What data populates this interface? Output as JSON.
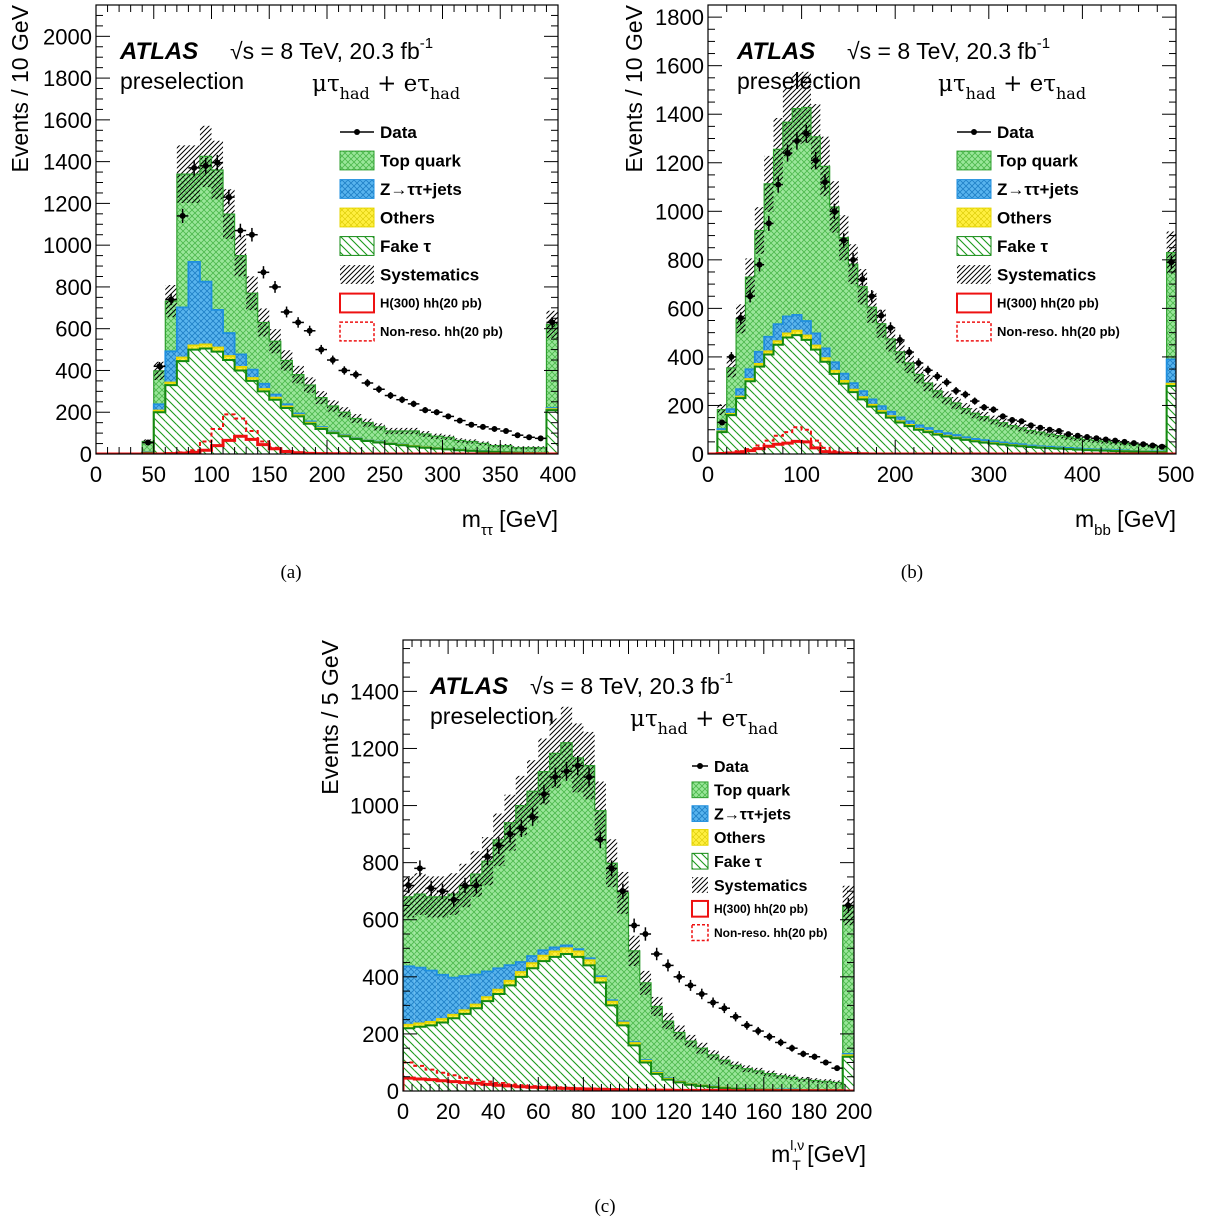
{
  "colors": {
    "top": "#99e699",
    "top_hatch": "#44b044",
    "ztt": "#2f9fe6",
    "others": "#ffee22",
    "fake": "#1c9a1c",
    "signal": "#ee1111",
    "data": "#000000"
  },
  "legend": {
    "data": "Data",
    "top": "Top quark",
    "ztt": "Z→ττ+jets",
    "others": "Others",
    "fake": "Fake  τ",
    "syst": "Systematics",
    "h300": "H(300) hh(20 pb)",
    "nonres": "Non-reso. hh(20 pb)"
  },
  "labels": {
    "atlas": "ATLAS",
    "sqrt_s": "√s = 8 TeV, 20.3 fb",
    "lumi_exp": "-1",
    "preselection": "preselection",
    "ch1": "μτ",
    "ch2": " + eτ",
    "had": "had"
  },
  "chart_data": [
    {
      "type": "histogram",
      "caption": "(a)",
      "xlabel_main": "m",
      "xlabel_sub": "ττ",
      "xlabel_sup": "",
      "xlabel_unit": " [GeV]",
      "ylabel": "Events / 10 GeV",
      "xlim": [
        0,
        400
      ],
      "ylim": [
        0,
        2150
      ],
      "xticks": [
        0,
        50,
        100,
        150,
        200,
        250,
        300,
        350,
        400
      ],
      "yticks": [
        0,
        200,
        400,
        600,
        800,
        1000,
        1200,
        1400,
        1600,
        1800,
        2000
      ],
      "bin_width": 10,
      "fake": [
        0,
        0,
        0,
        0,
        5,
        200,
        330,
        445,
        500,
        505,
        490,
        450,
        400,
        350,
        300,
        260,
        220,
        180,
        145,
        120,
        100,
        85,
        72,
        62,
        55,
        48,
        42,
        36,
        30,
        26,
        22,
        18,
        15,
        12,
        10,
        8,
        6,
        4,
        3,
        210
      ],
      "others": [
        0,
        0,
        0,
        0,
        2,
        8,
        12,
        17,
        20,
        20,
        20,
        19,
        17,
        14,
        11,
        10,
        8,
        6,
        5,
        4,
        3,
        3,
        2,
        2,
        2,
        2,
        2,
        2,
        2,
        2,
        1,
        1,
        1,
        1,
        1,
        1,
        1,
        1,
        1,
        5
      ],
      "ztt": [
        0,
        0,
        0,
        0,
        3,
        30,
        150,
        240,
        400,
        300,
        180,
        110,
        60,
        40,
        25,
        15,
        10,
        8,
        6,
        5,
        4,
        3,
        3,
        2,
        2,
        2,
        2,
        1,
        1,
        1,
        1,
        1,
        1,
        1,
        1,
        1,
        1,
        1,
        1,
        5
      ],
      "top": [
        0,
        0,
        0,
        0,
        50,
        160,
        240,
        638,
        420,
        600,
        670,
        570,
        473,
        366,
        294,
        255,
        210,
        186,
        174,
        141,
        123,
        109,
        93,
        84,
        71,
        58,
        64,
        71,
        63,
        56,
        56,
        45,
        43,
        37,
        28,
        30,
        22,
        24,
        25,
        400
      ],
      "data": [
        0,
        0,
        0,
        0,
        55,
        420,
        740,
        1140,
        1370,
        1380,
        1395,
        1230,
        1070,
        1050,
        870,
        800,
        680,
        630,
        590,
        500,
        450,
        400,
        380,
        340,
        310,
        280,
        260,
        240,
        210,
        200,
        180,
        160,
        140,
        130,
        120,
        110,
        90,
        80,
        75,
        630
      ],
      "signal_h300": [
        0,
        0,
        0,
        0,
        0,
        0,
        2,
        4,
        8,
        18,
        40,
        65,
        85,
        70,
        45,
        25,
        12,
        6,
        3,
        2,
        1,
        1,
        0,
        0,
        0,
        0,
        0,
        0,
        0,
        0,
        0,
        0,
        0,
        0,
        0,
        0,
        0,
        0,
        0,
        0
      ],
      "signal_nonres": [
        0,
        0,
        0,
        0,
        0,
        0,
        3,
        8,
        18,
        60,
        120,
        190,
        170,
        110,
        60,
        30,
        15,
        8,
        4,
        2,
        1,
        0,
        0,
        0,
        0,
        0,
        0,
        0,
        0,
        0,
        0,
        0,
        0,
        0,
        0,
        0,
        0,
        0,
        0,
        0
      ]
    },
    {
      "type": "histogram",
      "caption": "(b)",
      "xlabel_main": "m",
      "xlabel_sub": "bb",
      "xlabel_sup": "",
      "xlabel_unit": " [GeV]",
      "ylabel": "Events / 10 GeV",
      "xlim": [
        0,
        500
      ],
      "ylim": [
        0,
        1850
      ],
      "xticks": [
        0,
        100,
        200,
        300,
        400,
        500
      ],
      "yticks": [
        0,
        200,
        400,
        600,
        800,
        1000,
        1200,
        1400,
        1600,
        1800
      ],
      "bin_width": 10,
      "fake": [
        0,
        90,
        160,
        230,
        300,
        360,
        410,
        450,
        480,
        490,
        470,
        430,
        380,
        330,
        290,
        255,
        225,
        195,
        170,
        150,
        130,
        115,
        100,
        90,
        80,
        72,
        65,
        58,
        52,
        47,
        43,
        39,
        35,
        32,
        29,
        26,
        24,
        22,
        20,
        18,
        16,
        15,
        14,
        12,
        11,
        10,
        9,
        8,
        7,
        280
      ],
      "others": [
        0,
        3,
        5,
        7,
        9,
        11,
        13,
        15,
        17,
        18,
        18,
        17,
        15,
        13,
        11,
        10,
        9,
        8,
        7,
        6,
        5,
        5,
        4,
        4,
        3,
        3,
        3,
        2,
        2,
        2,
        2,
        2,
        2,
        2,
        1,
        1,
        1,
        1,
        1,
        1,
        1,
        1,
        1,
        1,
        1,
        1,
        1,
        1,
        1,
        10
      ],
      "ztt": [
        0,
        10,
        20,
        30,
        40,
        50,
        60,
        70,
        70,
        65,
        60,
        50,
        40,
        35,
        30,
        27,
        25,
        22,
        20,
        18,
        16,
        15,
        14,
        13,
        12,
        11,
        10,
        9,
        8,
        8,
        7,
        7,
        6,
        6,
        5,
        5,
        5,
        4,
        4,
        4,
        3,
        3,
        3,
        3,
        3,
        2,
        2,
        2,
        2,
        100
      ],
      "top": [
        0,
        80,
        170,
        290,
        380,
        500,
        630,
        720,
        800,
        850,
        880,
        810,
        750,
        640,
        560,
        490,
        430,
        380,
        340,
        300,
        270,
        240,
        210,
        185,
        165,
        145,
        132,
        118,
        106,
        97,
        88,
        81,
        74,
        68,
        62,
        58,
        52,
        49,
        45,
        42,
        40,
        37,
        34,
        31,
        29,
        27,
        25,
        23,
        21,
        440
      ],
      "data": [
        0,
        130,
        400,
        560,
        650,
        780,
        950,
        1110,
        1240,
        1290,
        1320,
        1210,
        1120,
        1000,
        880,
        800,
        720,
        650,
        570,
        520,
        470,
        420,
        375,
        345,
        320,
        295,
        260,
        245,
        218,
        192,
        183,
        155,
        140,
        135,
        118,
        108,
        100,
        95,
        82,
        75,
        70,
        65,
        60,
        55,
        50,
        45,
        40,
        35,
        30,
        790
      ],
      "signal_h300": [
        0,
        2,
        4,
        8,
        14,
        22,
        32,
        40,
        45,
        52,
        50,
        25,
        10,
        5,
        3,
        2,
        1,
        0,
        0,
        0,
        0,
        0,
        0,
        0,
        0,
        0,
        0,
        0,
        0,
        0,
        0,
        0,
        0,
        0,
        0,
        0,
        0,
        0,
        0,
        0,
        0,
        0,
        0,
        0,
        0,
        0,
        0,
        0,
        0,
        0
      ],
      "signal_nonres": [
        0,
        3,
        6,
        12,
        20,
        35,
        55,
        75,
        90,
        110,
        100,
        55,
        25,
        12,
        6,
        3,
        2,
        1,
        0,
        0,
        0,
        0,
        0,
        0,
        0,
        0,
        0,
        0,
        0,
        0,
        0,
        0,
        0,
        0,
        0,
        0,
        0,
        0,
        0,
        0,
        0,
        0,
        0,
        0,
        0,
        0,
        0,
        0,
        0,
        0
      ]
    },
    {
      "type": "histogram",
      "caption": "(c)",
      "xlabel_main": "m",
      "xlabel_sub": "T",
      "xlabel_sup": "l,ν",
      "xlabel_unit": " [GeV]",
      "ylabel": "Events / 5 GeV",
      "xlim": [
        0,
        200
      ],
      "ylim": [
        0,
        1580
      ],
      "xticks": [
        0,
        20,
        40,
        60,
        80,
        100,
        120,
        140,
        160,
        180,
        200
      ],
      "yticks": [
        0,
        200,
        400,
        600,
        800,
        1000,
        1200,
        1400
      ],
      "bin_width": 5,
      "fake": [
        220,
        225,
        230,
        240,
        255,
        270,
        290,
        315,
        340,
        370,
        400,
        430,
        455,
        470,
        480,
        470,
        440,
        380,
        300,
        230,
        160,
        100,
        60,
        40,
        30,
        22,
        17,
        13,
        10,
        8,
        6,
        5,
        4,
        3,
        3,
        2,
        2,
        2,
        2,
        120
      ],
      "others": [
        12,
        12,
        12,
        12,
        12,
        13,
        13,
        14,
        15,
        16,
        17,
        18,
        19,
        19,
        20,
        19,
        18,
        16,
        13,
        10,
        8,
        6,
        4,
        3,
        3,
        2,
        2,
        2,
        2,
        1,
        1,
        1,
        1,
        1,
        1,
        1,
        1,
        1,
        1,
        5
      ],
      "ztt": [
        205,
        195,
        180,
        155,
        130,
        120,
        105,
        90,
        75,
        55,
        35,
        25,
        19,
        14,
        10,
        8,
        7,
        6,
        5,
        4,
        3,
        3,
        2,
        2,
        2,
        1,
        1,
        1,
        1,
        1,
        1,
        1,
        1,
        1,
        1,
        1,
        1,
        1,
        1,
        5
      ],
      "top": [
        243,
        258,
        258,
        273,
        293,
        317,
        352,
        386,
        450,
        499,
        548,
        577,
        626,
        680,
        710,
        670,
        675,
        580,
        480,
        450,
        320,
        270,
        230,
        200,
        170,
        150,
        130,
        110,
        95,
        80,
        70,
        63,
        55,
        48,
        43,
        37,
        33,
        30,
        26,
        520
      ],
      "data": [
        720,
        780,
        710,
        700,
        670,
        720,
        720,
        820,
        860,
        900,
        920,
        960,
        1040,
        1100,
        1120,
        1140,
        1100,
        880,
        780,
        700,
        580,
        550,
        480,
        440,
        400,
        370,
        340,
        310,
        290,
        260,
        230,
        210,
        190,
        170,
        150,
        130,
        120,
        100,
        80,
        650
      ],
      "signal_h300": [
        45,
        42,
        40,
        36,
        33,
        30,
        27,
        23,
        20,
        18,
        15,
        13,
        12,
        10,
        9,
        8,
        7,
        6,
        5,
        4,
        4,
        3,
        3,
        3,
        2,
        2,
        2,
        2,
        2,
        1,
        1,
        1,
        1,
        1,
        1,
        1,
        1,
        1,
        1,
        0
      ],
      "signal_nonres": [
        100,
        88,
        75,
        64,
        55,
        46,
        39,
        33,
        28,
        23,
        20,
        17,
        15,
        13,
        11,
        9,
        8,
        7,
        6,
        5,
        4,
        4,
        3,
        3,
        2,
        2,
        2,
        2,
        1,
        1,
        1,
        1,
        1,
        1,
        1,
        1,
        1,
        1,
        1,
        0
      ]
    }
  ]
}
